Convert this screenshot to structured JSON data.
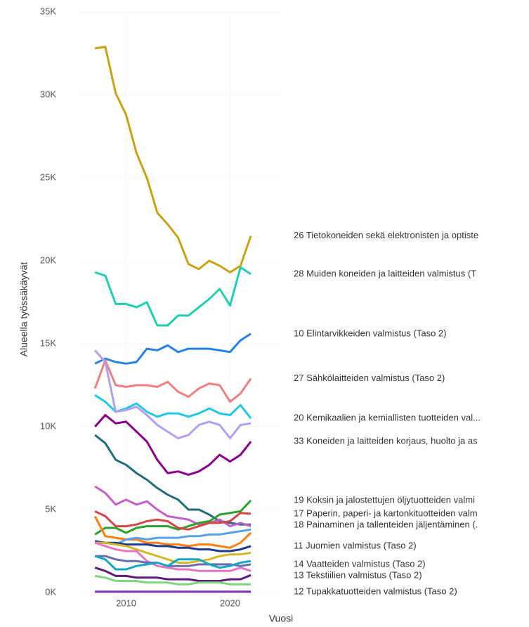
{
  "chart_data": {
    "type": "line",
    "y_label": "Alueella työssäkäyvät",
    "x_label": "Vuosi",
    "x": [
      2007,
      2008,
      2009,
      2010,
      2011,
      2012,
      2013,
      2014,
      2015,
      2016,
      2017,
      2018,
      2019,
      2020,
      2021,
      2022
    ],
    "xlim": [
      2005.3,
      2024.9
    ],
    "xticks": [
      2010,
      2020
    ],
    "ylim": [
      0,
      35000
    ],
    "yticks": [
      {
        "value": 0,
        "label": "0K"
      },
      {
        "value": 5000,
        "label": "5K"
      },
      {
        "value": 10000,
        "label": "10K"
      },
      {
        "value": 15000,
        "label": "15K"
      },
      {
        "value": 20000,
        "label": "20K"
      },
      {
        "value": 25000,
        "label": "25K"
      },
      {
        "value": 30000,
        "label": "30K"
      },
      {
        "value": 35000,
        "label": "35K"
      }
    ],
    "grid": true,
    "series": [
      {
        "name": "26 Tietokoneiden sekä elektronisten ja optiste",
        "color": "#c8a415",
        "values": [
          32800,
          32900,
          30100,
          28800,
          26500,
          25000,
          22900,
          22200,
          21400,
          19800,
          19500,
          20000,
          19700,
          19300,
          19700,
          21500
        ]
      },
      {
        "name": "28 Muiden koneiden ja laitteiden valmistus (T",
        "color": "#1fd0b0",
        "values": [
          19300,
          19100,
          17400,
          17400,
          17200,
          17500,
          16100,
          16100,
          16700,
          16700,
          17200,
          17700,
          18300,
          17300,
          19600,
          19200
        ]
      },
      {
        "name": "10 Elintarvikkeiden valmistus (Taso 2)",
        "color": "#2680e6",
        "values": [
          13800,
          14100,
          13900,
          13800,
          13900,
          14700,
          14600,
          14900,
          14500,
          14700,
          14700,
          14700,
          14600,
          14500,
          15200,
          15600
        ]
      },
      {
        "name": "27 Sähkölaitteiden valmistus (Taso 2)",
        "color": "#f08080",
        "values": [
          12300,
          14000,
          12500,
          12400,
          12500,
          12500,
          12400,
          12700,
          12100,
          11800,
          12300,
          12600,
          12500,
          11500,
          12000,
          12900
        ]
      },
      {
        "name": "20 Kemikaalien ja kemiallisten tuotteiden val...",
        "color": "#23c8e6",
        "values": [
          11900,
          11500,
          10900,
          11100,
          11400,
          10900,
          10600,
          10800,
          10800,
          10600,
          10800,
          11100,
          10800,
          10700,
          11300,
          10500
        ]
      },
      {
        "color": "#b39ef5",
        "values": [
          14600,
          13900,
          10900,
          11000,
          11200,
          10700,
          10100,
          9700,
          9300,
          9500,
          10100,
          10300,
          10100,
          9300,
          10100,
          10200
        ]
      },
      {
        "name": "33 Koneiden ja laitteiden korjaus, huolto ja as",
        "color": "#8b008b",
        "values": [
          10000,
          10700,
          10200,
          10300,
          9700,
          9100,
          8000,
          7200,
          7300,
          7100,
          7300,
          7700,
          8300,
          7900,
          8300,
          9100
        ]
      },
      {
        "name": "18 Painaminen ja tallenteiden jäljentäminen (.",
        "color": "#216d7a",
        "values": [
          9500,
          9000,
          8000,
          7700,
          7200,
          6800,
          6300,
          5900,
          5600,
          5000,
          5000,
          4700,
          4300,
          4200,
          4100,
          4100
        ]
      },
      {
        "color": "#c45ec8",
        "values": [
          6400,
          6000,
          5300,
          5600,
          5300,
          5500,
          5000,
          4600,
          4500,
          4400,
          4100,
          4200,
          4400,
          4000,
          4200,
          4000
        ]
      },
      {
        "name": "19 Koksin ja jalostettujen öljytuotteiden valmi",
        "color": "#2ca02c",
        "values": [
          3500,
          3900,
          3900,
          3600,
          3900,
          4000,
          4000,
          4000,
          3800,
          4000,
          4200,
          4300,
          4700,
          4800,
          4900,
          5550
        ]
      },
      {
        "name": "17 Paperin, paperi- ja kartonkituotteiden valm",
        "color": "#d64545",
        "values": [
          4900,
          4600,
          4000,
          4000,
          4100,
          4300,
          4400,
          4300,
          3900,
          3800,
          4000,
          4200,
          4200,
          4300,
          4800,
          4750
        ]
      },
      {
        "color": "#ff7f0e",
        "values": [
          4600,
          3400,
          3300,
          3200,
          3200,
          3000,
          3000,
          2900,
          2900,
          2800,
          2900,
          2900,
          2800,
          2700,
          3000,
          3600
        ]
      },
      {
        "color": "#5aa0e6",
        "values": [
          3000,
          3000,
          2900,
          3200,
          3300,
          3200,
          3300,
          3300,
          3300,
          3400,
          3400,
          3500,
          3500,
          3600,
          3700,
          3800
        ]
      },
      {
        "name": "11 Juomien valmistus (Taso 2)",
        "color": "#1f3a93",
        "values": [
          3100,
          3000,
          3000,
          2900,
          2900,
          2900,
          2800,
          2800,
          2700,
          2700,
          2600,
          2600,
          2500,
          2500,
          2600,
          2800
        ]
      },
      {
        "color": "#d4b82a",
        "values": [
          3000,
          3000,
          2900,
          2800,
          2600,
          2400,
          2200,
          2000,
          1800,
          1800,
          1900,
          2000,
          2200,
          2300,
          2300,
          2400
        ]
      },
      {
        "color": "#e377c2",
        "values": [
          3000,
          2800,
          2600,
          2500,
          2500,
          1900,
          1600,
          1500,
          1400,
          1400,
          1300,
          1300,
          1300,
          1300,
          1500,
          1300
        ]
      },
      {
        "name": "14 Vaatteiden valmistus (Taso 2)",
        "color": "#6b6bb0",
        "values": [
          2200,
          2200,
          2000,
          1900,
          1900,
          1800,
          1800,
          1600,
          1600,
          1600,
          1700,
          1700,
          1700,
          1700,
          1600,
          1700
        ]
      },
      {
        "color": "#17a6c4",
        "values": [
          2200,
          2000,
          1400,
          1400,
          1600,
          1700,
          1800,
          1600,
          2000,
          2000,
          2000,
          1700,
          1500,
          1600,
          1800,
          1900
        ]
      },
      {
        "name": "13 Tekstiilien valmistus (Taso 2)",
        "color": "#5c1a7a",
        "values": [
          1500,
          1300,
          1000,
          1000,
          900,
          900,
          900,
          800,
          800,
          800,
          700,
          700,
          700,
          800,
          800,
          1050
        ]
      },
      {
        "color": "#7ed67e",
        "values": [
          1000,
          900,
          700,
          700,
          700,
          600,
          600,
          600,
          500,
          500,
          600,
          600,
          600,
          500,
          500,
          500
        ]
      },
      {
        "name": "12 Tupakkatuotteiden valmistus (Taso 2)",
        "color": "#7b2fb5",
        "values": [
          50,
          50,
          50,
          50,
          50,
          50,
          50,
          50,
          50,
          50,
          50,
          50,
          50,
          50,
          50,
          50
        ]
      }
    ]
  }
}
